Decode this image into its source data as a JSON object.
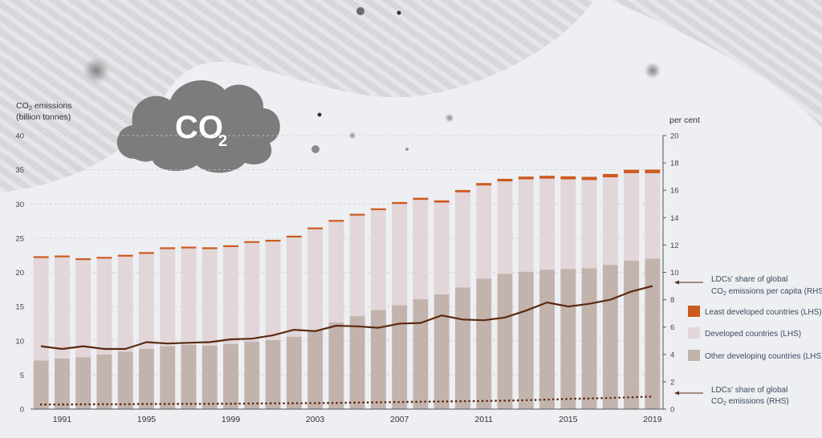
{
  "left_axis": {
    "title_line1_prefix": "CO",
    "title_line1_sub": "2",
    "title_line1_suffix": " emissions",
    "title_line2": "(billion tonnes)"
  },
  "right_axis": {
    "title": "per cent"
  },
  "cloud": {
    "main": "CO",
    "sub": "2"
  },
  "legend": {
    "ldc": "Least developed countries (LHS)",
    "developed": "Developed countries (LHS)",
    "other": "Other developing countries (LHS)"
  },
  "annotations": {
    "share_per_capita_line1": "LDCs' share of global",
    "share_per_capita_line2_prefix": "CO",
    "share_per_capita_line2_sub": "2",
    "share_per_capita_line2_suffix": " emissions per capita (RHS)",
    "share_line1": "LDCs' share of global",
    "share_line2_prefix": "CO",
    "share_line2_sub": "2",
    "share_line2_suffix": " emissions (RHS)"
  },
  "colors": {
    "ldc": "#cc5a1e",
    "developed": "#e2d6d8",
    "other": "#c3b3ad",
    "line": "#5a2a12",
    "background": "#eef0f3",
    "cloud": "#7c7c7c"
  },
  "chart_data": {
    "type": "bar",
    "stacked": true,
    "years": [
      1990,
      1991,
      1992,
      1993,
      1994,
      1995,
      1996,
      1997,
      1998,
      1999,
      2000,
      2001,
      2002,
      2003,
      2004,
      2005,
      2006,
      2007,
      2008,
      2009,
      2010,
      2011,
      2012,
      2013,
      2014,
      2015,
      2016,
      2017,
      2018,
      2019
    ],
    "x_tick_labels": [
      "1991",
      "1995",
      "1999",
      "2003",
      "2007",
      "2011",
      "2015",
      "2019"
    ],
    "left_ylim": [
      0,
      40
    ],
    "left_yticks": [
      "0",
      "5",
      "10",
      "15",
      "20",
      "25",
      "30",
      "35",
      "40"
    ],
    "right_ylim": [
      0,
      20
    ],
    "right_yticks": [
      "0",
      "2",
      "4",
      "6",
      "8",
      "10",
      "12",
      "14",
      "16",
      "18",
      "20"
    ],
    "series": [
      {
        "name": "Other developing countries (LHS)",
        "axis": "left",
        "values": [
          7.1,
          7.4,
          7.6,
          8.0,
          8.4,
          8.8,
          9.2,
          9.4,
          9.3,
          9.5,
          9.9,
          10.1,
          10.6,
          11.6,
          12.7,
          13.6,
          14.5,
          15.2,
          16.1,
          16.8,
          17.8,
          19.1,
          19.8,
          20.1,
          20.4,
          20.5,
          20.6,
          21.1,
          21.7,
          22.0
        ]
      },
      {
        "name": "Developed countries (LHS)",
        "axis": "left",
        "values": [
          15.0,
          14.8,
          14.2,
          14.0,
          13.9,
          13.9,
          14.2,
          14.1,
          14.1,
          14.2,
          14.4,
          14.4,
          14.5,
          14.7,
          14.7,
          14.7,
          14.6,
          14.8,
          14.5,
          13.4,
          13.9,
          13.6,
          13.5,
          13.5,
          13.3,
          13.1,
          12.9,
          12.8,
          12.8,
          12.5
        ]
      },
      {
        "name": "Least developed countries (LHS)",
        "axis": "left",
        "values": [
          0.12,
          0.12,
          0.12,
          0.12,
          0.13,
          0.14,
          0.14,
          0.15,
          0.15,
          0.16,
          0.17,
          0.18,
          0.19,
          0.2,
          0.22,
          0.24,
          0.26,
          0.28,
          0.3,
          0.32,
          0.34,
          0.36,
          0.38,
          0.4,
          0.42,
          0.44,
          0.46,
          0.48,
          0.5,
          0.52
        ]
      },
      {
        "name": "LDCs' share of global CO2 emissions per capita (RHS)",
        "axis": "right",
        "type": "line",
        "values": [
          4.6,
          4.4,
          4.6,
          4.4,
          4.4,
          4.9,
          4.8,
          4.85,
          4.9,
          5.1,
          5.15,
          5.4,
          5.8,
          5.7,
          6.1,
          6.05,
          5.95,
          6.25,
          6.3,
          6.85,
          6.55,
          6.5,
          6.7,
          7.2,
          7.8,
          7.5,
          7.7,
          8.0,
          8.6,
          9.0
        ]
      },
      {
        "name": "LDCs' share of global CO2 emissions (RHS)",
        "axis": "right",
        "type": "dotted",
        "values": [
          0.34,
          0.34,
          0.35,
          0.36,
          0.36,
          0.38,
          0.38,
          0.39,
          0.39,
          0.4,
          0.41,
          0.42,
          0.43,
          0.44,
          0.46,
          0.48,
          0.5,
          0.52,
          0.54,
          0.56,
          0.58,
          0.6,
          0.62,
          0.65,
          0.7,
          0.75,
          0.78,
          0.82,
          0.87,
          0.92
        ]
      }
    ]
  }
}
